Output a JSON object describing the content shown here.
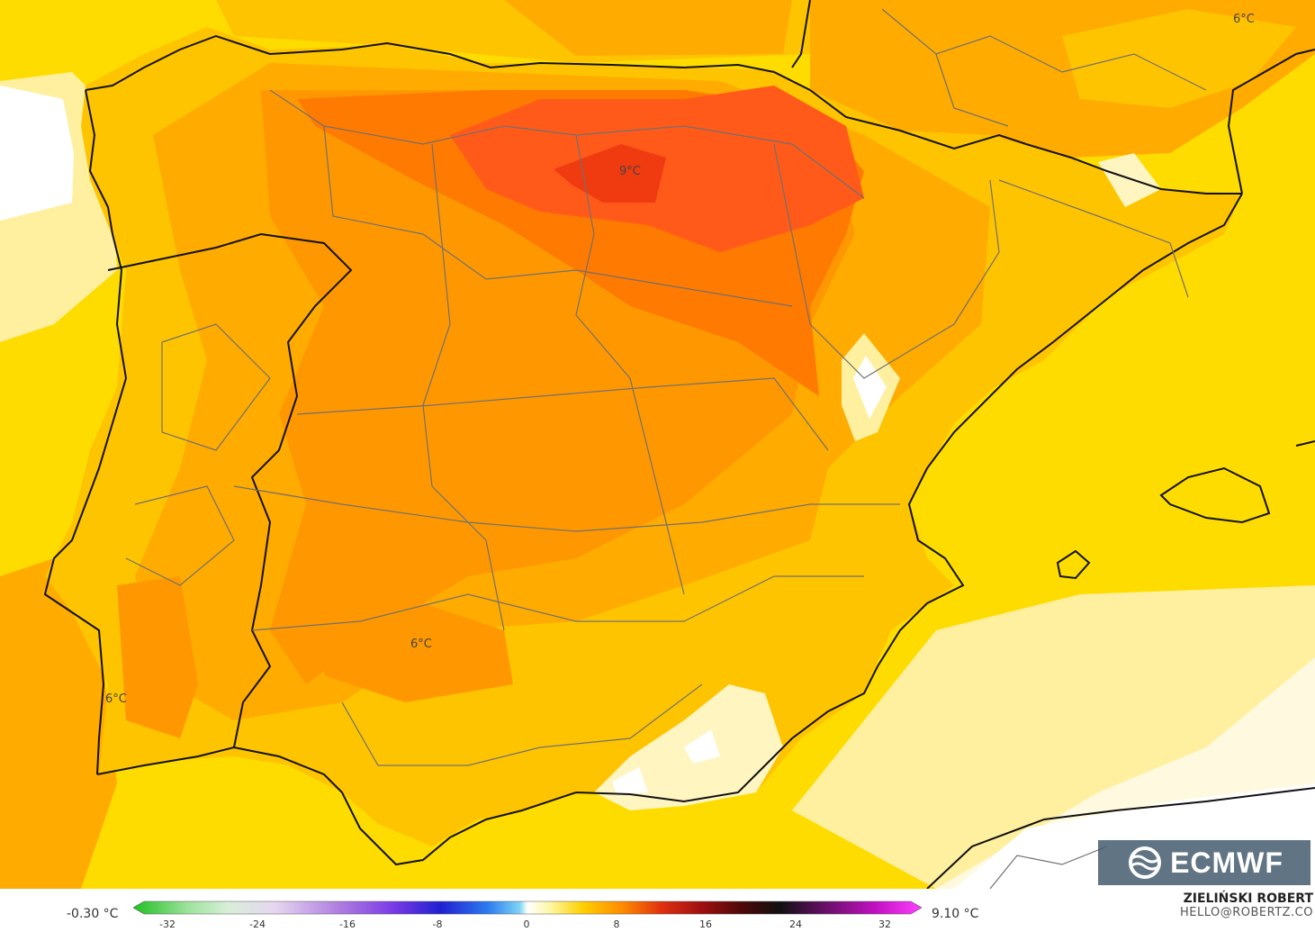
{
  "map": {
    "contour_labels": [
      {
        "id": "north",
        "text": "9°C"
      },
      {
        "id": "northeast",
        "text": "6°C"
      },
      {
        "id": "south",
        "text": "6°C"
      },
      {
        "id": "southwest",
        "text": "6°C"
      }
    ],
    "colors": {
      "pale": "#fff5c0",
      "light_yellow": "#ffea3a",
      "yellow": "#ffdc00",
      "gold": "#ffc400",
      "amber": "#ffab00",
      "orange": "#ff9800",
      "dark_orange": "#ff7a00",
      "red_orange": "#ff5a1a",
      "red": "#f03a10",
      "border": "#111111",
      "admin_border": "#707070"
    }
  },
  "legend": {
    "min_label": "-0.30 °C",
    "max_label": "9.10 °C",
    "ticks": [
      "-32",
      "-24",
      "-16",
      "-8",
      "0",
      "8",
      "16",
      "24",
      "32"
    ]
  },
  "credit": {
    "author": "ZIELIŃSKI ROBERT",
    "email": "HELLO@ROBERTZ.CO"
  },
  "logo": {
    "text": "ECMWF"
  }
}
